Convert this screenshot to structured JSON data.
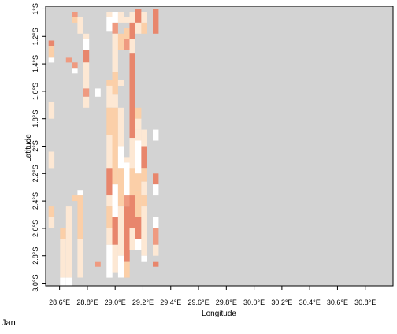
{
  "chart_data": {
    "type": "heatmap",
    "xlabel": "Longitude",
    "ylabel": "Latitude",
    "xlim": [
      28.5,
      31.0
    ],
    "ylim": [
      -3.02,
      -0.98
    ],
    "x_ticks": [
      {
        "value": 28.6,
        "label": "28.6°E"
      },
      {
        "value": 28.8,
        "label": "28.8°E"
      },
      {
        "value": 29.0,
        "label": "29.0°E"
      },
      {
        "value": 29.2,
        "label": "29.2°E"
      },
      {
        "value": 29.4,
        "label": "29.4°E"
      },
      {
        "value": 29.6,
        "label": "29.6°E"
      },
      {
        "value": 29.8,
        "label": "29.8°E"
      },
      {
        "value": 30.0,
        "label": "30.0°E"
      },
      {
        "value": 30.2,
        "label": "30.2°E"
      },
      {
        "value": 30.4,
        "label": "30.4°E"
      },
      {
        "value": 30.6,
        "label": "30.6°E"
      },
      {
        "value": 30.8,
        "label": "30.8°E"
      }
    ],
    "y_ticks": [
      {
        "value": -1.0,
        "label": "1°S"
      },
      {
        "value": -1.2,
        "label": "1.2°S"
      },
      {
        "value": -1.4,
        "label": "1.4°S"
      },
      {
        "value": -1.6,
        "label": "1.6°S"
      },
      {
        "value": -1.8,
        "label": "1.8°S"
      },
      {
        "value": -2.0,
        "label": "2°S"
      },
      {
        "value": -2.2,
        "label": "2.2°S"
      },
      {
        "value": -2.4,
        "label": "2.4°S"
      },
      {
        "value": -2.6,
        "label": "2.6°S"
      },
      {
        "value": -2.8,
        "label": "2.8°S"
      },
      {
        "value": -3.0,
        "label": "3.0°S"
      }
    ],
    "cell_size_deg": 0.0417,
    "level_colors": {
      "0": "#d3d3d3",
      "1": "#ffffff",
      "2": "#fde8d4",
      "3": "#fbcfa8",
      "4": "#ef9a80",
      "5": "#e8866c"
    },
    "columns": [
      {
        "lon": 28.521,
        "cells": [
          [
            -1.23,
            -1.27,
            5
          ],
          [
            -1.27,
            -1.35,
            3
          ],
          [
            -1.35,
            -1.39,
            1
          ],
          [
            -1.68,
            -1.8,
            2
          ],
          [
            -2.04,
            -2.16,
            2
          ],
          [
            -2.44,
            -2.52,
            3
          ],
          [
            -2.52,
            -2.6,
            2
          ]
        ]
      },
      {
        "lon": 28.604,
        "cells": [
          [
            -2.6,
            -2.68,
            3
          ],
          [
            -2.68,
            -2.96,
            2
          ],
          [
            -2.96,
            -3.02,
            1
          ]
        ]
      },
      {
        "lon": 28.646,
        "cells": [
          [
            -1.35,
            -1.39,
            4
          ],
          [
            -2.44,
            -2.48,
            2
          ],
          [
            -2.48,
            -2.96,
            2
          ],
          [
            -2.96,
            -3.02,
            1
          ]
        ]
      },
      {
        "lon": 28.688,
        "cells": [
          [
            -1.02,
            -1.06,
            4
          ],
          [
            -1.06,
            -1.1,
            3
          ],
          [
            -1.39,
            -1.43,
            4
          ],
          [
            -1.43,
            -1.47,
            1
          ],
          [
            -2.36,
            -2.4,
            3
          ]
        ]
      },
      {
        "lon": 28.729,
        "cells": [
          [
            -1.06,
            -1.18,
            2
          ],
          [
            -2.32,
            -2.36,
            1
          ],
          [
            -2.36,
            -2.68,
            3
          ],
          [
            -2.68,
            -2.96,
            2
          ]
        ]
      },
      {
        "lon": 28.771,
        "cells": [
          [
            -1.18,
            -1.22,
            2
          ],
          [
            -1.22,
            -1.3,
            1
          ],
          [
            -1.3,
            -1.39,
            5
          ],
          [
            -1.39,
            -1.58,
            2
          ],
          [
            -1.58,
            -1.64,
            4
          ],
          [
            -1.64,
            -1.72,
            2
          ]
        ]
      },
      {
        "lon": 28.854,
        "cells": [
          [
            -1.58,
            -1.64,
            1
          ],
          [
            -2.84,
            -2.88,
            4
          ]
        ]
      },
      {
        "lon": 28.938,
        "cells": [
          [
            -1.02,
            -1.06,
            2
          ],
          [
            -1.06,
            -1.16,
            1
          ],
          [
            -1.52,
            -1.56,
            3
          ],
          [
            -1.56,
            -1.72,
            2
          ],
          [
            -1.72,
            -1.92,
            3
          ],
          [
            -1.92,
            -2.16,
            2
          ],
          [
            -2.16,
            -2.36,
            5
          ],
          [
            -2.36,
            -2.44,
            2
          ],
          [
            -2.44,
            -2.6,
            3
          ],
          [
            -2.6,
            -2.72,
            2
          ],
          [
            -2.72,
            -2.96,
            1
          ]
        ]
      },
      {
        "lon": 28.979,
        "cells": [
          [
            -1.02,
            -1.1,
            1
          ],
          [
            -1.1,
            -1.18,
            4
          ],
          [
            -1.18,
            -1.46,
            2
          ],
          [
            -1.46,
            -1.62,
            3
          ],
          [
            -1.62,
            -1.72,
            2
          ],
          [
            -1.72,
            -1.92,
            3
          ],
          [
            -1.92,
            -2.28,
            3
          ],
          [
            -2.28,
            -2.52,
            1
          ],
          [
            -2.52,
            -2.72,
            5
          ],
          [
            -2.72,
            -2.92,
            2
          ]
        ]
      },
      {
        "lon": 29.021,
        "cells": [
          [
            -1.02,
            -1.1,
            2
          ],
          [
            -1.18,
            -1.3,
            3
          ],
          [
            -1.52,
            -1.56,
            2
          ],
          [
            -1.72,
            -2.0,
            2
          ],
          [
            -2.0,
            -2.16,
            1
          ],
          [
            -2.16,
            -2.44,
            3
          ],
          [
            -2.44,
            -2.8,
            2
          ],
          [
            -2.8,
            -2.96,
            1
          ]
        ]
      },
      {
        "lon": 29.063,
        "cells": [
          [
            -1.06,
            -1.1,
            2
          ],
          [
            -1.14,
            -1.3,
            3
          ],
          [
            -1.22,
            -1.3,
            4
          ],
          [
            -2.08,
            -2.12,
            2
          ],
          [
            -2.12,
            -2.36,
            1
          ],
          [
            -2.36,
            -2.44,
            4
          ],
          [
            -2.44,
            -2.84,
            5
          ],
          [
            -2.84,
            -2.96,
            3
          ]
        ]
      },
      {
        "lon": 29.104,
        "cells": [
          [
            -1.02,
            -1.1,
            2
          ],
          [
            -1.1,
            -1.22,
            5
          ],
          [
            -1.22,
            -1.32,
            2
          ],
          [
            -1.32,
            -1.94,
            5
          ],
          [
            -1.94,
            -2.16,
            2
          ],
          [
            -2.16,
            -2.36,
            3
          ],
          [
            -2.36,
            -2.6,
            5
          ],
          [
            -2.6,
            -2.76,
            2
          ]
        ]
      },
      {
        "lon": 29.146,
        "cells": [
          [
            -1.0,
            -1.1,
            5
          ],
          [
            -1.1,
            -1.18,
            2
          ],
          [
            -1.72,
            -1.8,
            3
          ],
          [
            -1.8,
            -1.88,
            2
          ],
          [
            -1.88,
            -1.96,
            2
          ],
          [
            -1.96,
            -2.2,
            1
          ],
          [
            -2.2,
            -2.32,
            3
          ],
          [
            -2.32,
            -2.52,
            3
          ],
          [
            -2.52,
            -2.68,
            5
          ],
          [
            -2.68,
            -2.76,
            1
          ]
        ]
      },
      {
        "lon": 29.188,
        "cells": [
          [
            -1.02,
            -1.1,
            2
          ],
          [
            -1.1,
            -1.18,
            3
          ],
          [
            -1.88,
            -2.0,
            2
          ],
          [
            -2.0,
            -2.16,
            5
          ],
          [
            -2.16,
            -2.26,
            3
          ],
          [
            -2.26,
            -2.36,
            2
          ],
          [
            -2.36,
            -2.44,
            3
          ],
          [
            -2.44,
            -2.8,
            2
          ],
          [
            -2.8,
            -2.84,
            1
          ]
        ]
      },
      {
        "lon": 29.271,
        "cells": [
          [
            -1.0,
            -1.18,
            5
          ],
          [
            -1.88,
            -1.96,
            1
          ],
          [
            -2.2,
            -2.28,
            5
          ],
          [
            -2.28,
            -2.36,
            1
          ],
          [
            -2.52,
            -2.6,
            1
          ],
          [
            -2.6,
            -2.72,
            4
          ],
          [
            -2.72,
            -2.8,
            2
          ],
          [
            -2.84,
            -2.88,
            5
          ]
        ]
      }
    ]
  },
  "footer": {
    "month": "Jan"
  }
}
